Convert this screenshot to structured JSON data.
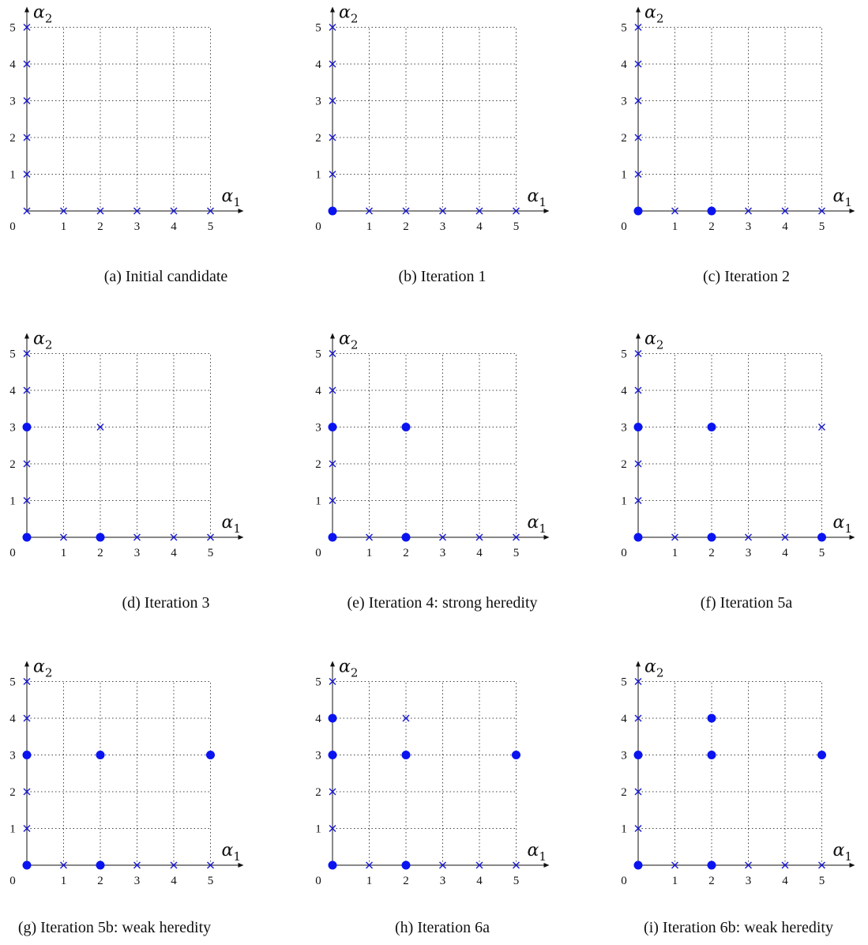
{
  "axes": {
    "x_symbol": "α",
    "x_subscript": "1",
    "y_symbol": "α",
    "y_subscript": "2",
    "origin_label": "0",
    "x_ticks": [
      "1",
      "2",
      "3",
      "4",
      "5"
    ],
    "y_ticks": [
      "1",
      "2",
      "3",
      "4",
      "5"
    ]
  },
  "colors": {
    "marker": "#0a14f0",
    "cross": "#1a1ad6",
    "axis": "#111111",
    "grid": "#444444"
  },
  "panels": [
    {
      "caption": "(a)  Initial candidate",
      "crosses": [
        [
          0,
          0
        ],
        [
          1,
          0
        ],
        [
          2,
          0
        ],
        [
          3,
          0
        ],
        [
          4,
          0
        ],
        [
          5,
          0
        ],
        [
          0,
          1
        ],
        [
          0,
          2
        ],
        [
          0,
          3
        ],
        [
          0,
          4
        ],
        [
          0,
          5
        ]
      ],
      "dots": []
    },
    {
      "caption": "(b)  Iteration 1",
      "crosses": [
        [
          1,
          0
        ],
        [
          2,
          0
        ],
        [
          3,
          0
        ],
        [
          4,
          0
        ],
        [
          5,
          0
        ],
        [
          0,
          1
        ],
        [
          0,
          2
        ],
        [
          0,
          3
        ],
        [
          0,
          4
        ],
        [
          0,
          5
        ]
      ],
      "dots": [
        [
          0,
          0
        ]
      ]
    },
    {
      "caption": "(c)  Iteration 2",
      "crosses": [
        [
          1,
          0
        ],
        [
          3,
          0
        ],
        [
          4,
          0
        ],
        [
          5,
          0
        ],
        [
          0,
          1
        ],
        [
          0,
          2
        ],
        [
          0,
          3
        ],
        [
          0,
          4
        ],
        [
          0,
          5
        ]
      ],
      "dots": [
        [
          0,
          0
        ],
        [
          2,
          0
        ]
      ]
    },
    {
      "caption": "(d)  Iteration 3",
      "crosses": [
        [
          1,
          0
        ],
        [
          3,
          0
        ],
        [
          4,
          0
        ],
        [
          5,
          0
        ],
        [
          0,
          1
        ],
        [
          0,
          2
        ],
        [
          0,
          4
        ],
        [
          0,
          5
        ],
        [
          2,
          3
        ]
      ],
      "dots": [
        [
          0,
          0
        ],
        [
          2,
          0
        ],
        [
          0,
          3
        ]
      ]
    },
    {
      "caption": "(e)  Iteration 4: strong heredity",
      "crosses": [
        [
          1,
          0
        ],
        [
          3,
          0
        ],
        [
          4,
          0
        ],
        [
          5,
          0
        ],
        [
          0,
          1
        ],
        [
          0,
          2
        ],
        [
          0,
          4
        ],
        [
          0,
          5
        ]
      ],
      "dots": [
        [
          0,
          0
        ],
        [
          2,
          0
        ],
        [
          0,
          3
        ],
        [
          2,
          3
        ]
      ]
    },
    {
      "caption": "(f)  Iteration 5a",
      "crosses": [
        [
          1,
          0
        ],
        [
          3,
          0
        ],
        [
          4,
          0
        ],
        [
          0,
          1
        ],
        [
          0,
          2
        ],
        [
          0,
          4
        ],
        [
          0,
          5
        ],
        [
          5,
          3
        ]
      ],
      "dots": [
        [
          0,
          0
        ],
        [
          2,
          0
        ],
        [
          5,
          0
        ],
        [
          0,
          3
        ],
        [
          2,
          3
        ]
      ]
    },
    {
      "caption": "(g)  Iteration 5b: weak heredity",
      "crosses": [
        [
          1,
          0
        ],
        [
          3,
          0
        ],
        [
          4,
          0
        ],
        [
          5,
          0
        ],
        [
          0,
          1
        ],
        [
          0,
          2
        ],
        [
          0,
          4
        ],
        [
          0,
          5
        ]
      ],
      "dots": [
        [
          0,
          0
        ],
        [
          2,
          0
        ],
        [
          0,
          3
        ],
        [
          2,
          3
        ],
        [
          5,
          3
        ]
      ]
    },
    {
      "caption": "(h)  Iteration 6a",
      "crosses": [
        [
          1,
          0
        ],
        [
          3,
          0
        ],
        [
          4,
          0
        ],
        [
          5,
          0
        ],
        [
          0,
          1
        ],
        [
          0,
          2
        ],
        [
          0,
          5
        ],
        [
          2,
          4
        ]
      ],
      "dots": [
        [
          0,
          0
        ],
        [
          2,
          0
        ],
        [
          0,
          3
        ],
        [
          0,
          4
        ],
        [
          2,
          3
        ],
        [
          5,
          3
        ]
      ]
    },
    {
      "caption": "(i)  Iteration 6b: weak heredity",
      "crosses": [
        [
          1,
          0
        ],
        [
          3,
          0
        ],
        [
          4,
          0
        ],
        [
          5,
          0
        ],
        [
          0,
          1
        ],
        [
          0,
          2
        ],
        [
          0,
          4
        ],
        [
          0,
          5
        ]
      ],
      "dots": [
        [
          0,
          0
        ],
        [
          2,
          0
        ],
        [
          0,
          3
        ],
        [
          2,
          3
        ],
        [
          2,
          4
        ],
        [
          5,
          3
        ]
      ]
    }
  ]
}
